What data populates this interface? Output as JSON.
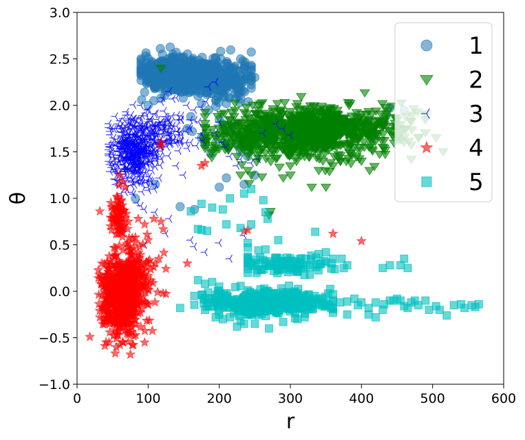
{
  "chart_data": {
    "type": "scatter",
    "xlabel": "r",
    "ylabel": "θ",
    "xlim": [
      0,
      600
    ],
    "ylim": [
      -1.0,
      3.0
    ],
    "xticks": [
      "0",
      "100",
      "200",
      "300",
      "400",
      "500",
      "600"
    ],
    "yticks": [
      "−1.0",
      "−0.5",
      "0.0",
      "0.5",
      "1.0",
      "1.5",
      "2.0",
      "2.5",
      "3.0"
    ],
    "grid": false,
    "legend_position": "top-right",
    "series": [
      {
        "name": "1",
        "marker": "circle",
        "color": "#1f77b4",
        "clusters": [
          {
            "count": 520,
            "cx": 140,
            "sx": 25,
            "cy": 2.33,
            "sy": 0.09,
            "xmin": 90,
            "xmax": 240
          },
          {
            "count": 260,
            "cx": 200,
            "sx": 22,
            "cy": 2.28,
            "sy": 0.1,
            "xmin": 100,
            "xmax": 245
          }
        ],
        "points": [
          [
            112,
            2.45
          ],
          [
            128,
            2.5
          ],
          [
            150,
            2.18
          ],
          [
            170,
            2.1
          ],
          [
            175,
            2.02
          ],
          [
            230,
            2.5
          ],
          [
            235,
            2.4
          ],
          [
            240,
            2.35
          ],
          [
            245,
            2.3
          ],
          [
            250,
            2.3
          ],
          [
            225,
            2.2
          ],
          [
            205,
            2.15
          ],
          [
            195,
            2.05
          ],
          [
            185,
            1.95
          ],
          [
            160,
            1.88
          ],
          [
            155,
            1.75
          ],
          [
            162,
            1.72
          ],
          [
            175,
            1.65
          ],
          [
            180,
            1.58
          ],
          [
            188,
            1.48
          ],
          [
            195,
            1.6
          ],
          [
            205,
            1.8
          ],
          [
            218,
            1.7
          ],
          [
            225,
            1.58
          ],
          [
            230,
            1.5
          ],
          [
            240,
            1.45
          ],
          [
            250,
            1.25
          ],
          [
            210,
            1.22
          ],
          [
            235,
            1.15
          ],
          [
            200,
            1.12
          ],
          [
            145,
            0.91
          ],
          [
            165,
            0.88
          ],
          [
            200,
            1.85
          ],
          [
            118,
            2.08
          ],
          [
            108,
            2.05
          ],
          [
            100,
            2.0
          ],
          [
            110,
            1.15
          ],
          [
            82,
            1.0
          ],
          [
            460,
            1.95
          ],
          [
            440,
            1.97
          ],
          [
            432,
            1.82
          ],
          [
            210,
            2.02
          ],
          [
            120,
            2.55
          ],
          [
            135,
            2.55
          ],
          [
            145,
            2.52
          ]
        ]
      },
      {
        "name": "2",
        "marker": "triangle-down",
        "color": "#008000",
        "clusters": [
          {
            "count": 650,
            "cx": 300,
            "sx": 55,
            "cy": 1.7,
            "sy": 0.14,
            "xmin": 180,
            "xmax": 470
          },
          {
            "count": 300,
            "cx": 370,
            "sx": 55,
            "cy": 1.78,
            "sy": 0.12,
            "xmin": 220,
            "xmax": 490
          }
        ],
        "points": [
          [
            118,
            2.4
          ],
          [
            505,
            1.65
          ],
          [
            515,
            1.5
          ],
          [
            470,
            1.42
          ],
          [
            350,
            1.12
          ],
          [
            340,
            1.3
          ],
          [
            330,
            1.12
          ],
          [
            260,
            1.23
          ],
          [
            245,
            1.25
          ],
          [
            272,
            0.86
          ],
          [
            270,
            0.82
          ],
          [
            230,
            1.25
          ],
          [
            240,
            1.3
          ],
          [
            290,
            1.22
          ],
          [
            300,
            1.35
          ],
          [
            400,
            1.4
          ],
          [
            430,
            1.55
          ],
          [
            460,
            1.6
          ],
          [
            480,
            1.65
          ],
          [
            300,
            1.25
          ],
          [
            242,
            1.16
          ],
          [
            360,
            1.35
          ],
          [
            370,
            1.4
          ],
          [
            320,
            1.45
          ],
          [
            238,
            1.98
          ],
          [
            255,
            2.0
          ],
          [
            282,
            2.02
          ],
          [
            292,
            2.03
          ],
          [
            310,
            2.02
          ],
          [
            225,
            1.45
          ],
          [
            215,
            1.55
          ]
        ]
      },
      {
        "name": "3",
        "marker": "tri-left",
        "color": "#0000ff",
        "clusters": [
          {
            "count": 450,
            "cx": 80,
            "sx": 15,
            "cy": 1.5,
            "sy": 0.17,
            "xmin": 45,
            "xmax": 140
          },
          {
            "count": 150,
            "cx": 120,
            "sx": 22,
            "cy": 1.7,
            "sy": 0.13,
            "xmin": 70,
            "xmax": 175
          }
        ],
        "points": [
          [
            55,
            1.15
          ],
          [
            62,
            1.05
          ],
          [
            70,
            1.1
          ],
          [
            85,
            0.95
          ],
          [
            90,
            0.92
          ],
          [
            95,
            0.88
          ],
          [
            110,
            0.85
          ],
          [
            130,
            0.78
          ],
          [
            125,
            0.62
          ],
          [
            160,
            0.55
          ],
          [
            95,
            0.5
          ],
          [
            165,
            0.48
          ],
          [
            180,
            0.42
          ],
          [
            200,
            0.52
          ],
          [
            215,
            0.35
          ],
          [
            235,
            0.6
          ],
          [
            155,
            2.0
          ],
          [
            165,
            1.95
          ],
          [
            175,
            1.98
          ],
          [
            182,
            2.04
          ],
          [
            200,
            1.82
          ],
          [
            195,
            1.7
          ],
          [
            205,
            1.6
          ],
          [
            210,
            1.55
          ],
          [
            215,
            1.45
          ],
          [
            225,
            1.35
          ],
          [
            230,
            1.42
          ],
          [
            245,
            1.38
          ],
          [
            255,
            1.42
          ],
          [
            262,
            1.7
          ],
          [
            280,
            1.8
          ],
          [
            290,
            1.75
          ],
          [
            300,
            1.68
          ],
          [
            185,
            2.2
          ],
          [
            195,
            2.25
          ],
          [
            130,
            2.15
          ],
          [
            140,
            2.08
          ],
          [
            150,
            1.25
          ],
          [
            140,
            1.35
          ],
          [
            160,
            1.6
          ],
          [
            172,
            1.65
          ],
          [
            178,
            1.62
          ],
          [
            100,
            1.95
          ],
          [
            90,
            2.0
          ],
          [
            58,
            1.8
          ],
          [
            55,
            1.75
          ]
        ]
      },
      {
        "name": "4",
        "marker": "star",
        "color": "#ff0000",
        "clusters": [
          {
            "count": 650,
            "cx": 62,
            "sx": 13,
            "cy": -0.05,
            "sy": 0.2,
            "xmin": 30,
            "xmax": 125
          },
          {
            "count": 130,
            "cx": 80,
            "sx": 18,
            "cy": 0.1,
            "sy": 0.2,
            "xmin": 30,
            "xmax": 125
          },
          {
            "count": 60,
            "cx": 58,
            "sx": 5,
            "cy": 0.8,
            "sy": 0.12,
            "xmin": 45,
            "xmax": 72
          }
        ],
        "points": [
          [
            18,
            -0.49
          ],
          [
            32,
            -0.28
          ],
          [
            35,
            0.3
          ],
          [
            38,
            0.12
          ],
          [
            45,
            0.18
          ],
          [
            45,
            -0.55
          ],
          [
            55,
            -0.6
          ],
          [
            75,
            -0.68
          ],
          [
            95,
            -0.55
          ],
          [
            115,
            0.35
          ],
          [
            110,
            0.3
          ],
          [
            100,
            0.55
          ],
          [
            118,
            0.75
          ],
          [
            108,
            0.78
          ],
          [
            95,
            0.72
          ],
          [
            86,
            0.78
          ],
          [
            82,
            0.58
          ],
          [
            88,
            0.48
          ],
          [
            155,
            0.3
          ],
          [
            175,
            1.35
          ],
          [
            180,
            1.38
          ],
          [
            235,
            0.65
          ],
          [
            240,
            0.66
          ],
          [
            360,
            0.62
          ],
          [
            400,
            0.54
          ],
          [
            118,
            1.56
          ],
          [
            60,
            1.25
          ],
          [
            68,
            1.12
          ],
          [
            56,
            1.02
          ],
          [
            62,
            0.97
          ],
          [
            32,
            0.86
          ],
          [
            118,
            1.6
          ],
          [
            64,
            1.18
          ]
        ]
      },
      {
        "name": "5",
        "marker": "square",
        "color": "#00bfbf",
        "clusters": [
          {
            "count": 500,
            "cx": 265,
            "sx": 38,
            "cy": -0.12,
            "sy": 0.06,
            "xmin": 165,
            "xmax": 360
          },
          {
            "count": 90,
            "cx": 300,
            "sx": 45,
            "cy": 0.28,
            "sy": 0.05,
            "xmin": 240,
            "xmax": 375
          }
        ],
        "points": [
          [
            145,
            -0.18
          ],
          [
            165,
            -0.05
          ],
          [
            170,
            0.12
          ],
          [
            180,
            0.08
          ],
          [
            190,
            0.1
          ],
          [
            200,
            0.05
          ],
          [
            175,
            0.66
          ],
          [
            170,
            0.67
          ],
          [
            183,
            0.65
          ],
          [
            160,
            0.86
          ],
          [
            175,
            0.94
          ],
          [
            190,
            0.9
          ],
          [
            205,
            0.88
          ],
          [
            215,
            1.0
          ],
          [
            235,
            1.05
          ],
          [
            245,
            1.1
          ],
          [
            262,
            0.98
          ],
          [
            265,
            0.85
          ],
          [
            268,
            0.78
          ],
          [
            245,
            0.72
          ],
          [
            210,
            0.72
          ],
          [
            230,
            0.68
          ],
          [
            240,
            0.52
          ],
          [
            240,
            0.47
          ],
          [
            255,
            0.44
          ],
          [
            265,
            0.45
          ],
          [
            283,
            0.55
          ],
          [
            335,
            0.64
          ],
          [
            340,
            0.4
          ],
          [
            350,
            0.42
          ],
          [
            360,
            0.35
          ],
          [
            372,
            0.35
          ],
          [
            460,
            0.35
          ],
          [
            455,
            0.28
          ],
          [
            465,
            0.25
          ],
          [
            440,
            0.28
          ],
          [
            430,
            0.25
          ],
          [
            390,
            -0.08
          ],
          [
            380,
            -0.11
          ],
          [
            395,
            -0.15
          ],
          [
            400,
            -0.12
          ],
          [
            410,
            -0.18
          ],
          [
            420,
            -0.12
          ],
          [
            432,
            -0.14
          ],
          [
            440,
            -0.1
          ],
          [
            445,
            -0.1
          ],
          [
            450,
            -0.08
          ],
          [
            455,
            -0.1
          ],
          [
            460,
            -0.16
          ],
          [
            465,
            -0.18
          ],
          [
            470,
            -0.12
          ],
          [
            475,
            -0.1
          ],
          [
            480,
            -0.15
          ],
          [
            490,
            -0.1
          ],
          [
            495,
            -0.2
          ],
          [
            505,
            -0.16
          ],
          [
            510,
            -0.2
          ],
          [
            520,
            -0.26
          ],
          [
            530,
            -0.15
          ],
          [
            540,
            -0.14
          ],
          [
            545,
            -0.18
          ],
          [
            555,
            -0.15
          ],
          [
            560,
            -0.17
          ],
          [
            565,
            -0.14
          ],
          [
            370,
            -0.12
          ],
          [
            360,
            -0.1
          ],
          [
            350,
            -0.15
          ],
          [
            345,
            -0.08
          ],
          [
            410,
            -0.25
          ],
          [
            420,
            -0.28
          ],
          [
            430,
            -0.2
          ],
          [
            380,
            -0.25
          ],
          [
            250,
            -0.35
          ],
          [
            270,
            -0.4
          ],
          [
            290,
            -0.33
          ],
          [
            310,
            -0.3
          ],
          [
            320,
            -0.28
          ],
          [
            235,
            -0.35
          ],
          [
            225,
            -0.38
          ],
          [
            200,
            -0.25
          ],
          [
            215,
            -0.28
          ],
          [
            230,
            -0.32
          ],
          [
            180,
            -0.2
          ],
          [
            195,
            -0.28
          ],
          [
            205,
            -0.3
          ],
          [
            280,
            0.28
          ],
          [
            300,
            0.25
          ],
          [
            310,
            0.22
          ],
          [
            290,
            0.3
          ],
          [
            380,
            0.28
          ]
        ]
      }
    ]
  }
}
